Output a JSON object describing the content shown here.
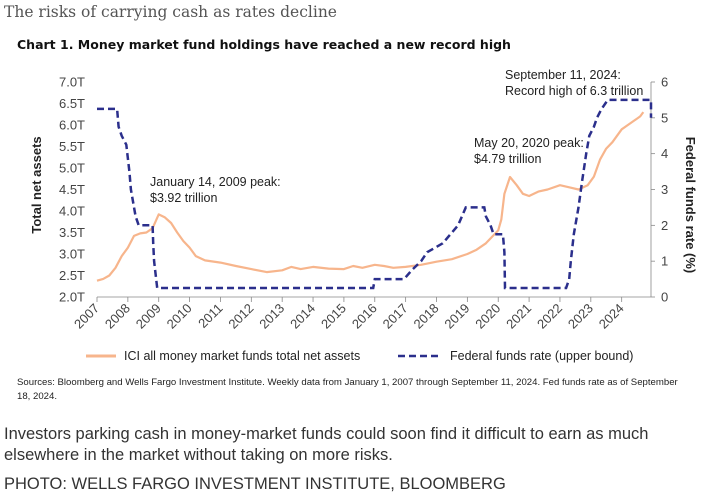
{
  "page": {
    "heading": "The risks of carrying cash as rates decline",
    "caption": "Investors parking cash in money-market funds could soon find it difficult to earn as much elsewhere in the market without taking on more risks.",
    "credit": "PHOTO: WELLS FARGO INVESTMENT INSTITUTE, BLOOMBERG"
  },
  "chart_data": {
    "type": "line",
    "title": "Chart 1. Money market fund holdings have reached a new record high",
    "xlabel": "",
    "ylabel": "Total net assets",
    "y2label": "Federal funds rate (%)",
    "x_range": [
      2007.0,
      2024.95
    ],
    "ylim": [
      2.0,
      7.0
    ],
    "y2lim": [
      0,
      6
    ],
    "x_ticks": [
      "2007",
      "2008",
      "2009",
      "2010",
      "2011",
      "2012",
      "2013",
      "2014",
      "2015",
      "2016",
      "2017",
      "2018",
      "2019",
      "2020",
      "2021",
      "2022",
      "2023",
      "2024"
    ],
    "y_ticks": [
      "2.0T",
      "2.5T",
      "3.0T",
      "3.5T",
      "4.0T",
      "4.5T",
      "5.0T",
      "5.5T",
      "6.0T",
      "6.5T",
      "7.0T"
    ],
    "y2_ticks": [
      "0",
      "1",
      "2",
      "3",
      "4",
      "5",
      "6"
    ],
    "series": [
      {
        "name": "ICI all money market funds total net assets",
        "axis": "left",
        "unit": "trillion USD",
        "color": "#f7b58c",
        "points": [
          [
            2007.0,
            2.38
          ],
          [
            2007.2,
            2.42
          ],
          [
            2007.4,
            2.5
          ],
          [
            2007.6,
            2.68
          ],
          [
            2007.8,
            2.95
          ],
          [
            2008.0,
            3.15
          ],
          [
            2008.2,
            3.42
          ],
          [
            2008.4,
            3.48
          ],
          [
            2008.6,
            3.5
          ],
          [
            2008.8,
            3.6
          ],
          [
            2009.0,
            3.92
          ],
          [
            2009.2,
            3.85
          ],
          [
            2009.4,
            3.72
          ],
          [
            2009.6,
            3.5
          ],
          [
            2009.8,
            3.3
          ],
          [
            2010.0,
            3.15
          ],
          [
            2010.2,
            2.95
          ],
          [
            2010.5,
            2.85
          ],
          [
            2011.0,
            2.8
          ],
          [
            2011.5,
            2.72
          ],
          [
            2012.0,
            2.65
          ],
          [
            2012.5,
            2.58
          ],
          [
            2013.0,
            2.62
          ],
          [
            2013.3,
            2.7
          ],
          [
            2013.6,
            2.65
          ],
          [
            2014.0,
            2.7
          ],
          [
            2014.5,
            2.66
          ],
          [
            2015.0,
            2.65
          ],
          [
            2015.3,
            2.72
          ],
          [
            2015.6,
            2.68
          ],
          [
            2016.0,
            2.75
          ],
          [
            2016.3,
            2.72
          ],
          [
            2016.6,
            2.68
          ],
          [
            2017.0,
            2.7
          ],
          [
            2017.5,
            2.75
          ],
          [
            2018.0,
            2.82
          ],
          [
            2018.5,
            2.88
          ],
          [
            2019.0,
            3.0
          ],
          [
            2019.3,
            3.1
          ],
          [
            2019.6,
            3.25
          ],
          [
            2020.0,
            3.55
          ],
          [
            2020.1,
            3.8
          ],
          [
            2020.2,
            4.4
          ],
          [
            2020.38,
            4.79
          ],
          [
            2020.6,
            4.6
          ],
          [
            2020.8,
            4.4
          ],
          [
            2021.0,
            4.35
          ],
          [
            2021.3,
            4.45
          ],
          [
            2021.6,
            4.5
          ],
          [
            2022.0,
            4.6
          ],
          [
            2022.3,
            4.55
          ],
          [
            2022.6,
            4.5
          ],
          [
            2022.9,
            4.6
          ],
          [
            2023.1,
            4.8
          ],
          [
            2023.3,
            5.2
          ],
          [
            2023.5,
            5.45
          ],
          [
            2023.7,
            5.6
          ],
          [
            2024.0,
            5.9
          ],
          [
            2024.3,
            6.05
          ],
          [
            2024.6,
            6.2
          ],
          [
            2024.7,
            6.3
          ]
        ]
      },
      {
        "name": "Federal funds rate (upper bound)",
        "axis": "right",
        "unit": "percent",
        "color": "#2b2f8c",
        "points": [
          [
            2007.0,
            5.25
          ],
          [
            2007.65,
            5.25
          ],
          [
            2007.7,
            4.75
          ],
          [
            2007.8,
            4.5
          ],
          [
            2007.95,
            4.25
          ],
          [
            2008.05,
            3.5
          ],
          [
            2008.1,
            3.0
          ],
          [
            2008.25,
            2.25
          ],
          [
            2008.35,
            2.0
          ],
          [
            2008.8,
            2.0
          ],
          [
            2008.82,
            1.5
          ],
          [
            2008.85,
            1.0
          ],
          [
            2008.95,
            0.25
          ],
          [
            2015.95,
            0.25
          ],
          [
            2016.0,
            0.5
          ],
          [
            2016.95,
            0.5
          ],
          [
            2017.2,
            0.75
          ],
          [
            2017.5,
            1.0
          ],
          [
            2017.7,
            1.25
          ],
          [
            2018.2,
            1.5
          ],
          [
            2018.45,
            1.75
          ],
          [
            2018.7,
            2.0
          ],
          [
            2018.95,
            2.5
          ],
          [
            2019.55,
            2.5
          ],
          [
            2019.6,
            2.25
          ],
          [
            2019.75,
            2.0
          ],
          [
            2019.85,
            1.75
          ],
          [
            2020.15,
            1.75
          ],
          [
            2020.2,
            1.25
          ],
          [
            2020.22,
            0.25
          ],
          [
            2022.2,
            0.25
          ],
          [
            2022.3,
            0.5
          ],
          [
            2022.35,
            1.0
          ],
          [
            2022.45,
            1.75
          ],
          [
            2022.6,
            2.5
          ],
          [
            2022.72,
            3.25
          ],
          [
            2022.85,
            4.0
          ],
          [
            2022.95,
            4.5
          ],
          [
            2023.1,
            4.75
          ],
          [
            2023.2,
            5.0
          ],
          [
            2023.35,
            5.25
          ],
          [
            2023.55,
            5.5
          ],
          [
            2024.95,
            5.5
          ],
          [
            2024.95,
            5.0
          ]
        ]
      }
    ],
    "annotations": [
      {
        "lines": [
          "January 14, 2009 peak:",
          "$3.92 trillion"
        ],
        "x": 2009.04,
        "y": 3.92
      },
      {
        "lines": [
          "May 20, 2020 peak:",
          "$4.79 trillion"
        ],
        "x": 2020.38,
        "y": 4.79
      },
      {
        "lines": [
          "September 11, 2024:",
          "Record high of 6.3 trillion"
        ],
        "x": 2024.7,
        "y": 6.3
      }
    ],
    "legend_position": "bottom-center"
  },
  "sources": "Sources: Bloomberg and Wells Fargo Investment Institute. Weekly data from January 1, 2007 through September 11, 2024. Fed funds rate as of September 18, 2024."
}
